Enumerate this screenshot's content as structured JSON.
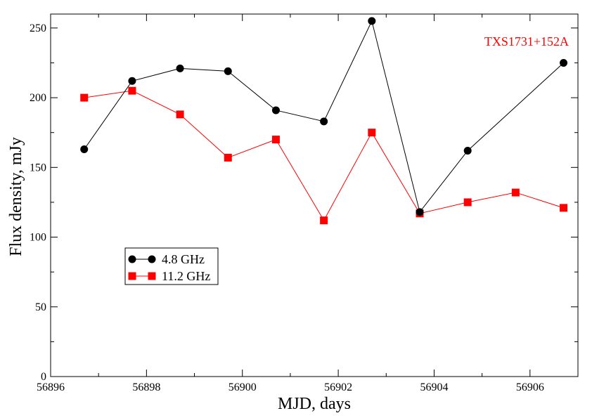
{
  "chart_data": {
    "type": "line",
    "title": "",
    "annotation": "TXS1731+152A",
    "xlabel": "MJD, days",
    "ylabel": "Flux density, mJy",
    "xlim": [
      56896,
      56907
    ],
    "ylim": [
      0,
      260
    ],
    "x_ticks": [
      56896,
      56898,
      56900,
      56902,
      56904,
      56906
    ],
    "y_ticks": [
      0,
      50,
      100,
      150,
      200,
      250
    ],
    "grid": false,
    "legend_position": "lower-left",
    "series": [
      {
        "name": "4.8 GHz",
        "color": "#000000",
        "marker": "circle",
        "x": [
          56896.7,
          56897.7,
          56898.7,
          56899.7,
          56900.7,
          56901.7,
          56902.7,
          56903.7,
          56904.7,
          56906.7
        ],
        "y": [
          163,
          212,
          221,
          219,
          191,
          183,
          255,
          118,
          162,
          225
        ]
      },
      {
        "name": "11.2 GHz",
        "color": "#ff0000",
        "marker": "square",
        "x": [
          56896.7,
          56897.7,
          56898.7,
          56899.7,
          56900.7,
          56901.7,
          56902.7,
          56903.7,
          56904.7,
          56905.7,
          56906.7
        ],
        "y": [
          200,
          205,
          188,
          157,
          170,
          112,
          175,
          117,
          125,
          132,
          121
        ]
      }
    ]
  }
}
